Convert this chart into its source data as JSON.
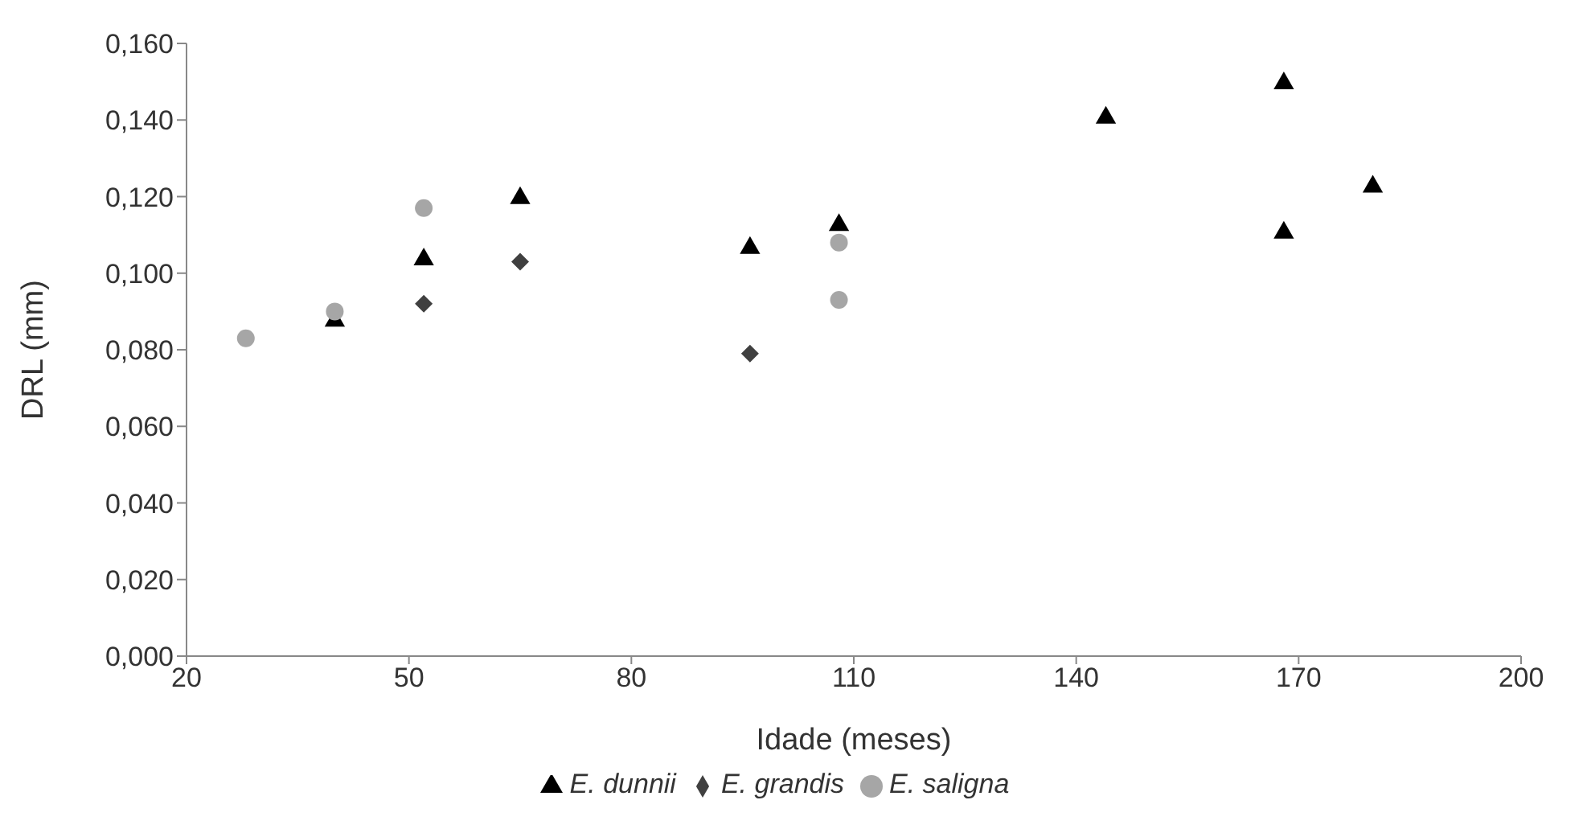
{
  "chart_data": {
    "type": "scatter",
    "xlabel": "Idade (meses)",
    "ylabel": "DRL  (mm)",
    "xlim": [
      20,
      200
    ],
    "xticks": [
      20,
      50,
      80,
      110,
      140,
      170,
      200
    ],
    "ylim": [
      0,
      0.16
    ],
    "yticks": [
      {
        "value": 0,
        "label": "0,000"
      },
      {
        "value": 0.02,
        "label": "0,020"
      },
      {
        "value": 0.04,
        "label": "0,040"
      },
      {
        "value": 0.06,
        "label": "0,060"
      },
      {
        "value": 0.08,
        "label": "0,080"
      },
      {
        "value": 0.1,
        "label": "0,100"
      },
      {
        "value": 0.12,
        "label": "0,120"
      },
      {
        "value": 0.14,
        "label": "0,140"
      },
      {
        "value": 0.16,
        "label": "0,160"
      }
    ],
    "grid": false,
    "legend": "bottom",
    "series": [
      {
        "name": "E. dunnii",
        "color": "#000000",
        "marker": "triangle",
        "x": [
          40,
          52,
          65,
          96,
          108,
          144,
          168,
          168,
          180
        ],
        "values": [
          0.088,
          0.104,
          0.12,
          0.107,
          0.113,
          0.141,
          0.15,
          0.111,
          0.123
        ]
      },
      {
        "name": "E. grandis",
        "color": "#404040",
        "marker": "diamond",
        "x": [
          52,
          65,
          96
        ],
        "values": [
          0.092,
          0.103,
          0.079
        ]
      },
      {
        "name": "E. saligna",
        "color": "#a6a6a6",
        "marker": "circle",
        "x": [
          28,
          40,
          52,
          108,
          108
        ],
        "values": [
          0.083,
          0.09,
          0.117,
          0.108,
          0.093
        ]
      }
    ]
  }
}
